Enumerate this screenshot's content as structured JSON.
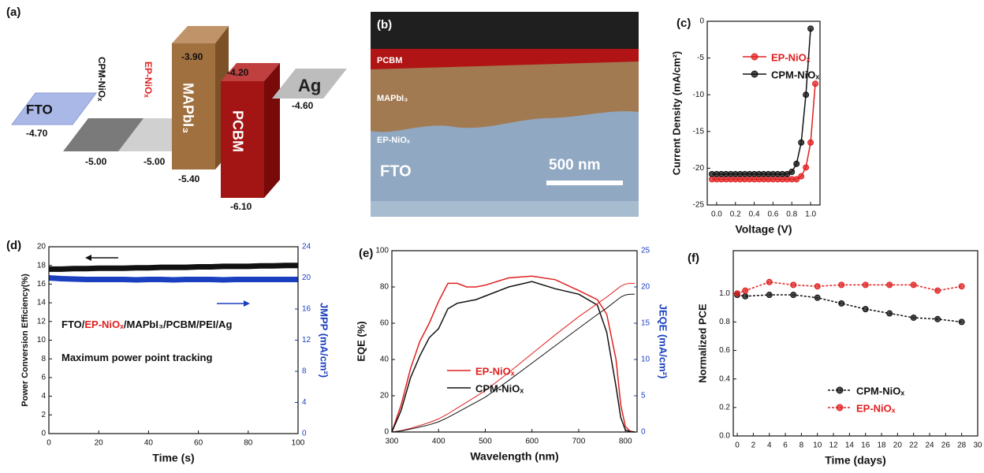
{
  "diagram": {
    "label": "(a)",
    "layers": [
      {
        "label": "FTO",
        "levels": [
          "-4.70"
        ]
      },
      {
        "label": "CPM-NiOₓ",
        "levels": [
          "-5.00"
        ]
      },
      {
        "label": "EP-NiOₓ",
        "levels": [
          "-5.00"
        ]
      },
      {
        "label": "MAPbI₃",
        "levels": [
          "-3.90",
          "-5.40"
        ]
      },
      {
        "label": "PCBM",
        "levels": [
          "-4.20",
          "-6.10"
        ]
      },
      {
        "label": "Ag",
        "levels": [
          "-4.60"
        ]
      }
    ]
  },
  "image": {
    "label": "(b)",
    "layers": [
      "PCBM",
      "MAPbI₃",
      "EP-NiOₓ",
      "FTO"
    ],
    "scale_bar": "500 nm"
  },
  "chart_data": [
    {
      "type": "line",
      "panel": "(c)",
      "xlabel": "Voltage (V)",
      "ylabel": "Current Density (mA/cm²)",
      "xlim": [
        -0.1,
        1.1
      ],
      "ylim": [
        -25,
        0
      ],
      "xticks": [
        {
          "value": 0,
          "label": "0.0"
        },
        0.2,
        0.4,
        0.6,
        0.8,
        {
          "value": 1,
          "label": "1.0"
        }
      ],
      "yticks": [
        -25,
        -20,
        -15,
        -10,
        -5,
        0
      ],
      "markers": true,
      "legend": "upper left",
      "series": [
        {
          "name": "EP-NiOₓ",
          "color": "#e02020",
          "x": [
            -0.05,
            0,
            0.05,
            0.1,
            0.15,
            0.2,
            0.25,
            0.3,
            0.35,
            0.4,
            0.45,
            0.5,
            0.55,
            0.6,
            0.65,
            0.7,
            0.75,
            0.8,
            0.85,
            0.9,
            0.95,
            1.0,
            1.05
          ],
          "values": [
            -21.5,
            -21.5,
            -21.5,
            -21.5,
            -21.5,
            -21.5,
            -21.5,
            -21.5,
            -21.5,
            -21.5,
            -21.5,
            -21.5,
            -21.5,
            -21.5,
            -21.5,
            -21.5,
            -21.5,
            -21.5,
            -21.5,
            -21.1,
            -19.9,
            -16.5,
            -8.5
          ]
        },
        {
          "name": "CPM-NiOₓ",
          "color": "#111111",
          "x": [
            -0.05,
            0,
            0.05,
            0.1,
            0.15,
            0.2,
            0.25,
            0.3,
            0.35,
            0.4,
            0.45,
            0.5,
            0.55,
            0.6,
            0.65,
            0.7,
            0.75,
            0.8,
            0.85,
            0.9,
            0.95,
            1.0
          ],
          "values": [
            -20.8,
            -20.8,
            -20.8,
            -20.8,
            -20.8,
            -20.8,
            -20.8,
            -20.8,
            -20.8,
            -20.8,
            -20.8,
            -20.8,
            -20.8,
            -20.8,
            -20.8,
            -20.8,
            -20.8,
            -20.5,
            -19.4,
            -16.5,
            -10.0,
            -1.0
          ]
        }
      ]
    },
    {
      "type": "line",
      "panel": "(d)",
      "xlabel": "Time (s)",
      "ylabel": "Power Conversion Efficiency(%)",
      "y2label": "JMPP (mA/cm²)",
      "y2_color": "#1a3fbf",
      "xlim": [
        0,
        100
      ],
      "ylim": [
        0,
        20
      ],
      "y2lim": [
        0,
        24
      ],
      "xticks": [
        0,
        20,
        40,
        60,
        80,
        100
      ],
      "yticks": [
        0,
        2,
        4,
        6,
        8,
        10,
        12,
        14,
        16,
        18,
        20
      ],
      "y2ticks": [
        0,
        4,
        8,
        12,
        16,
        20,
        24
      ],
      "x": [
        0,
        5,
        10,
        15,
        20,
        25,
        30,
        35,
        40,
        45,
        50,
        55,
        60,
        65,
        70,
        75,
        80,
        85,
        90,
        95,
        100
      ],
      "series": [
        {
          "color": "#111111",
          "width": 7,
          "values": [
            17.6,
            17.6,
            17.65,
            17.65,
            17.7,
            17.7,
            17.7,
            17.75,
            17.75,
            17.8,
            17.8,
            17.8,
            17.85,
            17.85,
            17.9,
            17.9,
            17.9,
            17.95,
            17.95,
            18.0,
            18.0
          ]
        },
        {
          "color": "#1a3fbf",
          "width": 7,
          "axis": "y2",
          "values": [
            20.0,
            19.9,
            19.85,
            19.8,
            19.8,
            19.8,
            19.8,
            19.75,
            19.8,
            19.8,
            19.75,
            19.8,
            19.8,
            19.8,
            19.75,
            19.8,
            19.8,
            19.8,
            19.8,
            19.8,
            19.8
          ]
        }
      ],
      "annotations": [
        {
          "parts": [
            {
              "text": "FTO/",
              "color": "#111111"
            },
            {
              "text": "EP-NiOₓ",
              "color": "#e02020"
            },
            {
              "text": "/MAPbI₃/PCBM/PEI/Ag",
              "color": "#111111"
            }
          ]
        },
        {
          "parts": [
            {
              "text": "Maximum power point tracking",
              "color": "#111111"
            }
          ]
        }
      ]
    },
    {
      "type": "line",
      "panel": "(e)",
      "xlabel": "Wavelength (nm)",
      "ylabel": "EQE (%)",
      "y2label": "JEQE (mA/cm²)",
      "y2_color": "#1a3fbf",
      "xlim": [
        300,
        825
      ],
      "ylim": [
        0,
        100
      ],
      "y2lim": [
        0,
        25
      ],
      "xticks": [
        300,
        400,
        500,
        600,
        700,
        800
      ],
      "yticks": [
        0,
        20,
        40,
        60,
        80,
        100
      ],
      "y2ticks": [
        0,
        5,
        10,
        15,
        20,
        25
      ],
      "legend": "lower center",
      "x": [
        300,
        320,
        340,
        360,
        380,
        400,
        420,
        440,
        460,
        480,
        500,
        550,
        600,
        650,
        700,
        740,
        760,
        780,
        790,
        800,
        810,
        820
      ],
      "series": [
        {
          "name": "EP-NiOₓ",
          "color": "#e02020",
          "values": [
            0,
            15,
            35,
            50,
            60,
            72,
            82,
            82,
            80,
            80,
            81,
            85,
            86,
            84,
            78,
            73,
            65,
            40,
            15,
            3,
            0.5,
            0
          ]
        },
        {
          "name": "CPM-NiOₓ",
          "color": "#111111",
          "values": [
            0,
            12,
            30,
            42,
            52,
            57,
            68,
            71,
            72,
            73,
            75,
            80,
            83,
            79,
            76,
            70,
            55,
            25,
            8,
            1,
            0.2,
            0
          ]
        },
        {
          "color": "#e02020",
          "width": 1,
          "axis": "y2",
          "values": [
            0,
            0.2,
            0.5,
            0.9,
            1.3,
            1.8,
            2.5,
            3.3,
            4.1,
            4.9,
            5.7,
            8.2,
            10.8,
            13.4,
            15.9,
            17.7,
            18.6,
            19.6,
            20.1,
            20.4,
            20.5,
            20.5
          ]
        },
        {
          "color": "#111111",
          "width": 1,
          "axis": "y2",
          "values": [
            0,
            0.15,
            0.4,
            0.7,
            1.0,
            1.4,
            2.0,
            2.7,
            3.4,
            4.1,
            4.8,
            7.1,
            9.5,
            11.9,
            14.3,
            16.2,
            17.1,
            18.1,
            18.6,
            18.9,
            19.0,
            19.0
          ]
        }
      ]
    },
    {
      "type": "line",
      "panel": "(f)",
      "xlabel": "Time (days)",
      "ylabel": "Normalized PCE",
      "xlim": [
        -0.5,
        30
      ],
      "ylim": [
        0,
        1.3
      ],
      "xticks": [
        0,
        2,
        4,
        6,
        8,
        10,
        12,
        14,
        16,
        18,
        20,
        22,
        24,
        26,
        28,
        30
      ],
      "yticks": [
        {
          "value": 0,
          "label": "0.0"
        },
        0.2,
        0.4,
        0.6,
        0.8,
        {
          "value": 1,
          "label": "1.0"
        }
      ],
      "markers": true,
      "dashed": true,
      "legend": "lower right",
      "x": [
        0,
        1,
        4,
        7,
        10,
        13,
        16,
        19,
        22,
        25,
        28
      ],
      "series": [
        {
          "name": "CPM-NiOₓ",
          "color": "#111111",
          "values": [
            0.99,
            0.98,
            0.99,
            0.99,
            0.97,
            0.93,
            0.89,
            0.86,
            0.83,
            0.82,
            0.8
          ]
        },
        {
          "name": "EP-NiOₓ",
          "color": "#e02020",
          "values": [
            1.0,
            1.02,
            1.08,
            1.06,
            1.05,
            1.06,
            1.06,
            1.06,
            1.06,
            1.02,
            1.05
          ]
        }
      ]
    }
  ]
}
